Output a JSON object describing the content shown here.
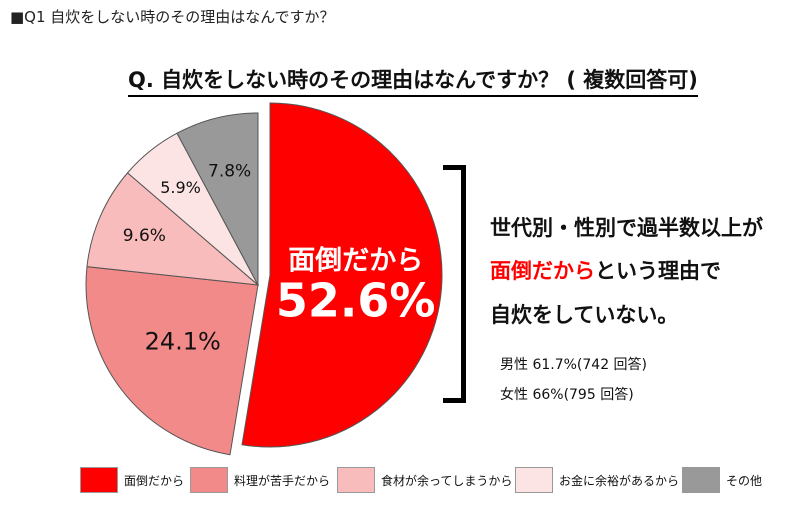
{
  "header": {
    "title": "■Q1 自炊をしない時のその理由はなんですか？"
  },
  "chart_data": {
    "type": "pie",
    "title": "Q. 自炊をしない時のその理由はなんですか？ ( 複数回答可)",
    "slices": [
      {
        "label": "面倒だから",
        "value": 52.6,
        "display": "52.6%",
        "color": "#ff0000"
      },
      {
        "label": "料理が苦手だから",
        "value": 24.1,
        "display": "24.1%",
        "color": "#f28a8a"
      },
      {
        "label": "食材が余ってしまうから",
        "value": 9.6,
        "display": "9.6%",
        "color": "#f9bcbc"
      },
      {
        "label": "お金に余裕があるから",
        "value": 5.9,
        "display": "5.9%",
        "color": "#fde4e4"
      },
      {
        "label": "その他",
        "value": 7.8,
        "display": "7.8%",
        "color": "#999999"
      }
    ],
    "main_slice_label": "面倒だから",
    "legend_position": "bottom"
  },
  "annotation": {
    "line1": "世代別・性別で過半数以上が",
    "line2_highlight": "面倒だから",
    "line2_rest": "という理由で",
    "line3": "自炊をしていない。",
    "stats": [
      "男性 61.7%(742 回答)",
      "女性 66%(795 回答)"
    ]
  }
}
